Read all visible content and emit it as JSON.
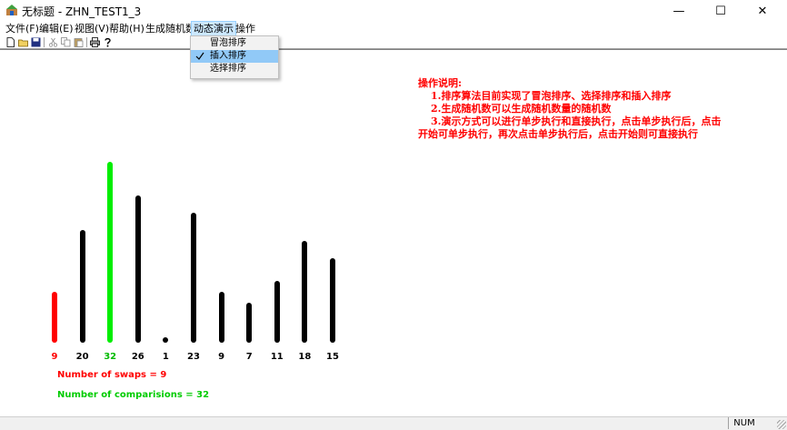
{
  "window": {
    "title": "无标题 - ZHN_TEST1_3",
    "minimize": "—",
    "maximize": "☐",
    "close": "✕"
  },
  "menu": [
    "文件(F)",
    "编辑(E)",
    "视图(V)",
    "帮助(H)",
    "生成随机数",
    "动态演示",
    "操作"
  ],
  "active_menu_index": 5,
  "dropdown": {
    "items": [
      {
        "label": "冒泡排序",
        "checked": false
      },
      {
        "label": "插入排序",
        "checked": true
      },
      {
        "label": "选择排序",
        "checked": false
      }
    ]
  },
  "instructions": {
    "title": "操作说明:",
    "line1": "1.排序算法目前实现了冒泡排序、选择排序和插入排序",
    "line2": "2.生成随机数可以生成随机数量的随机数",
    "line3": "3.演示方式可以进行单步执行和直接执行，点击单步执行后，点击",
    "line4": "开始可单步执行，再次点击单步执行后，点击开始则可直接执行"
  },
  "chart_data": {
    "type": "bar",
    "values": [
      9,
      20,
      32,
      26,
      1,
      23,
      9,
      7,
      11,
      18,
      15
    ],
    "categories": [
      "9",
      "20",
      "32",
      "26",
      "1",
      "23",
      "9",
      "7",
      "11",
      "18",
      "15"
    ],
    "bar_colors": [
      "#ff0000",
      "#000000",
      "#00ee00",
      "#000000",
      "#000000",
      "#000000",
      "#000000",
      "#000000",
      "#000000",
      "#000000",
      "#000000"
    ],
    "label_colors": [
      "#ff0000",
      "#000000",
      "#00bb00",
      "#000000",
      "#000000",
      "#000000",
      "#000000",
      "#000000",
      "#000000",
      "#000000",
      "#000000"
    ],
    "ylim": [
      0,
      32
    ]
  },
  "stats": {
    "swaps": "Number of swaps = 9",
    "comparisons": "Number of comparisions = 32",
    "swaps_color": "#ff0000",
    "comparisons_color": "#00cc00"
  },
  "status": {
    "num": "NUM"
  }
}
